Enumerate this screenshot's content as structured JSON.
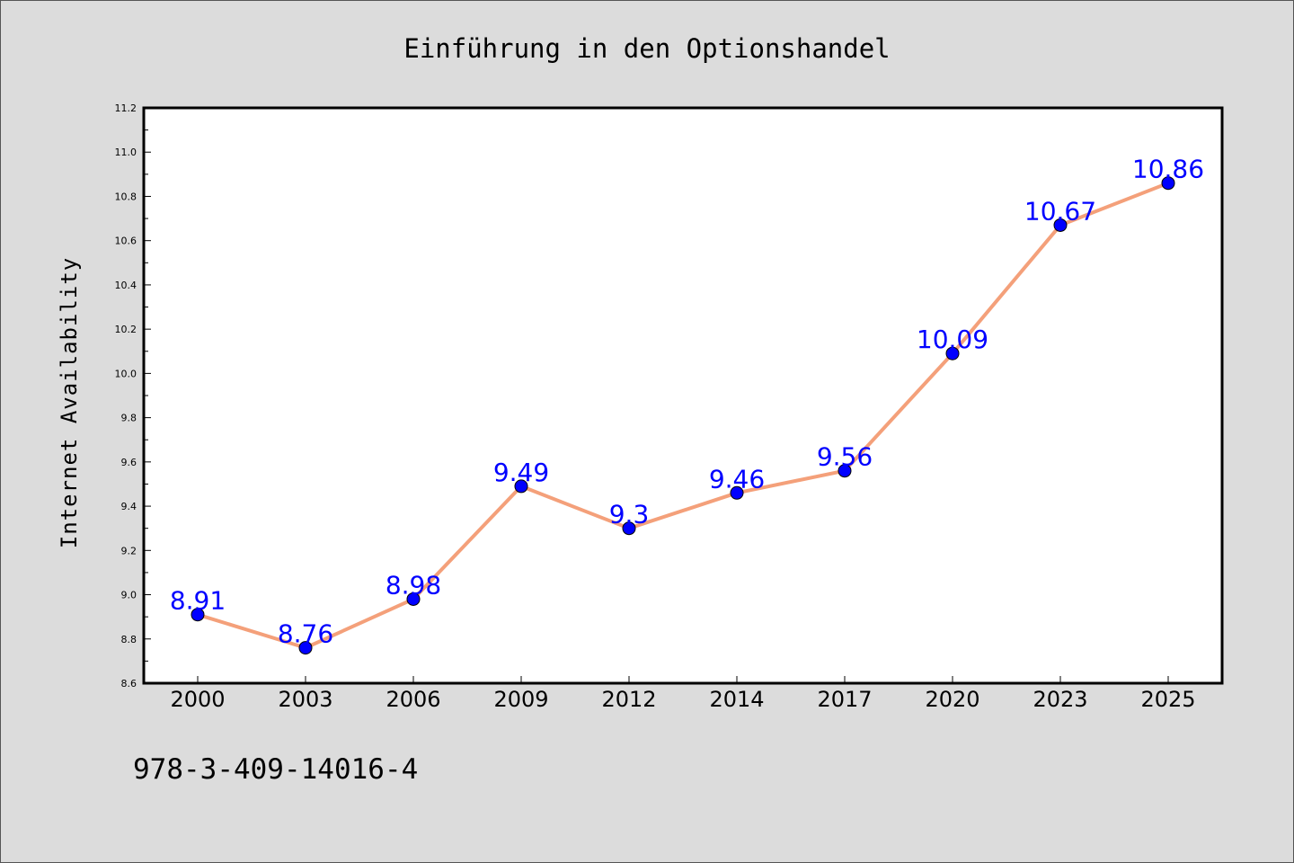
{
  "chart_data": {
    "type": "line",
    "title": "Einführung in den Optionshandel",
    "xlabel": "",
    "ylabel": "Internet Availability",
    "categories": [
      "2000",
      "2003",
      "2006",
      "2009",
      "2012",
      "2014",
      "2017",
      "2020",
      "2023",
      "2025"
    ],
    "series": [
      {
        "values": [
          8.91,
          8.76,
          8.98,
          9.49,
          9.3,
          9.46,
          9.56,
          10.09,
          10.67,
          10.86
        ],
        "data_labels": [
          "8.91",
          "8.76",
          "8.98",
          "9.49",
          "9.3",
          "9.46",
          "9.56",
          "10.09",
          "10.67",
          "10.86"
        ],
        "line_color": "#f4a07a",
        "marker_color": "#0000ff"
      }
    ],
    "ylim": [
      8.6,
      11.2
    ],
    "yticks": [
      "8.6",
      "8.8",
      "9.0",
      "9.2",
      "9.4",
      "9.6",
      "9.8",
      "10.0",
      "10.2",
      "10.4",
      "10.6",
      "10.8",
      "11.0",
      "11.2"
    ],
    "grid": false,
    "legend": "none"
  },
  "footer": {
    "isbn": "978-3-409-14016-4"
  },
  "colors": {
    "background": "#dcdcdc",
    "plot_background": "#ffffff",
    "label_color": "#0000ff"
  }
}
